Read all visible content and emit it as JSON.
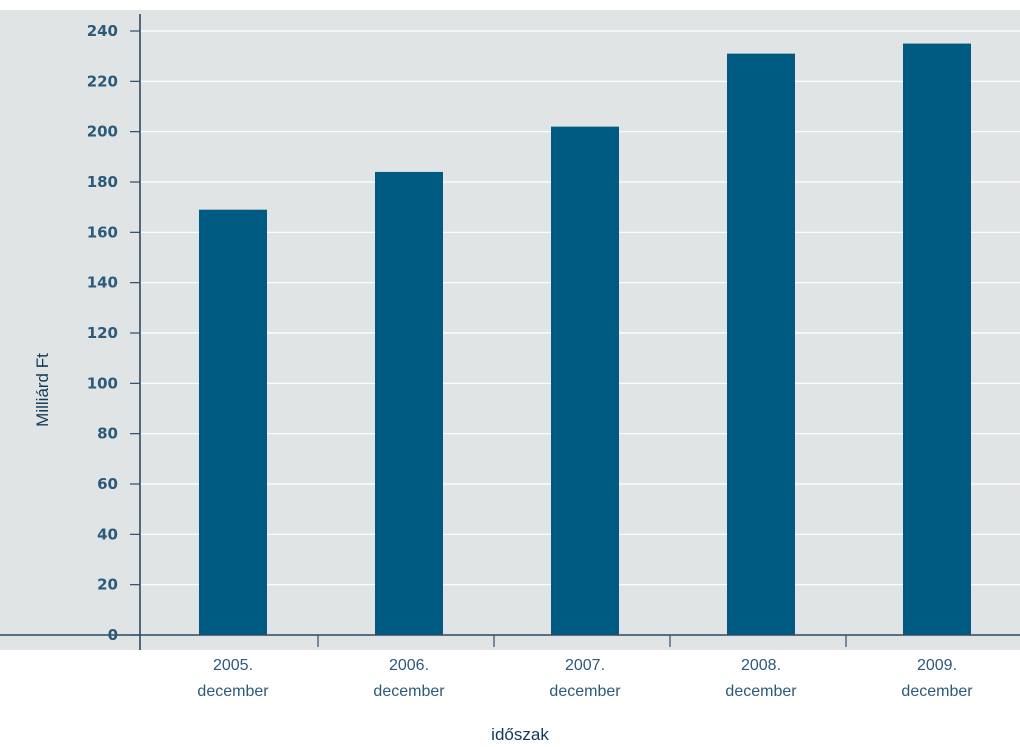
{
  "chart_data": {
    "type": "bar",
    "categories": [
      "2005.\ndecember",
      "2006.\ndecember",
      "2007.\ndecember",
      "2008.\ndecember",
      "2009.\ndecember"
    ],
    "values": [
      169,
      184,
      202,
      231,
      235
    ],
    "title": "",
    "xlabel": "időszak",
    "ylabel": "Milliárd Ft",
    "yticks": [
      0,
      20,
      40,
      60,
      80,
      100,
      120,
      140,
      160,
      180,
      200,
      220,
      240
    ],
    "grid": true,
    "colors": {
      "bar": "#005b82",
      "plot_background": "#e0e4e5",
      "axis": "#2b4a66",
      "tick_label": "#2b5a7a",
      "axis_title": "#123a57"
    }
  }
}
